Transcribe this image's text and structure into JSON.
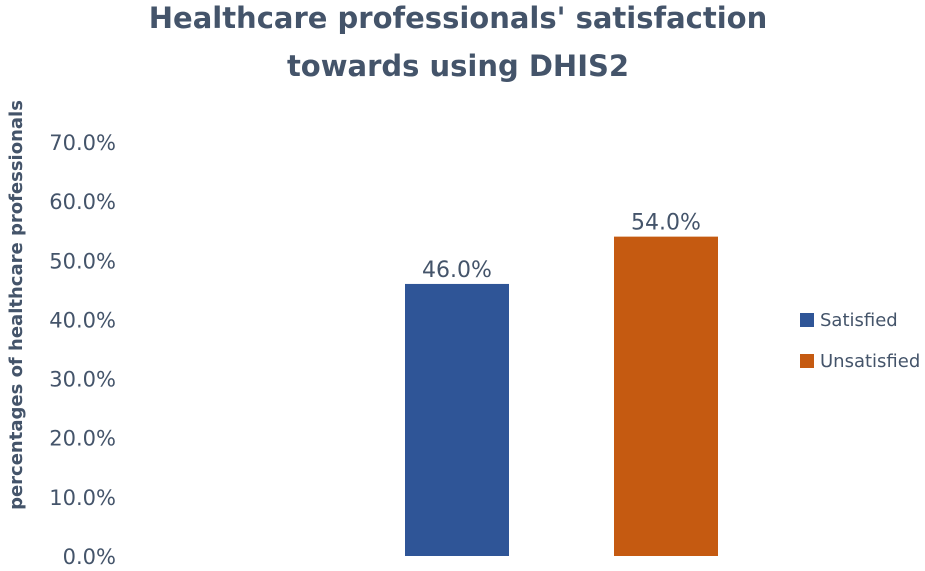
{
  "chart_data": {
    "type": "bar",
    "title_lines": [
      "Healthcare professionals' satisfaction",
      "towards using DHIS2"
    ],
    "ylabel": "percentages of healthcare professionals",
    "xlabel": "",
    "ylim": [
      0,
      70
    ],
    "y_ticks": [
      "0.0%",
      "10.0%",
      "20.0%",
      "30.0%",
      "40.0%",
      "50.0%",
      "60.0%",
      "70.0%"
    ],
    "y_tick_values": [
      0,
      10,
      20,
      30,
      40,
      50,
      60,
      70
    ],
    "grid": false,
    "legend_position": "right",
    "series": [
      {
        "name": "Satisfied",
        "value": 46.0,
        "label": "46.0%",
        "color": "#2f5597"
      },
      {
        "name": "Unsatisfied",
        "value": 54.0,
        "label": "54.0%",
        "color": "#c55a11"
      }
    ]
  }
}
